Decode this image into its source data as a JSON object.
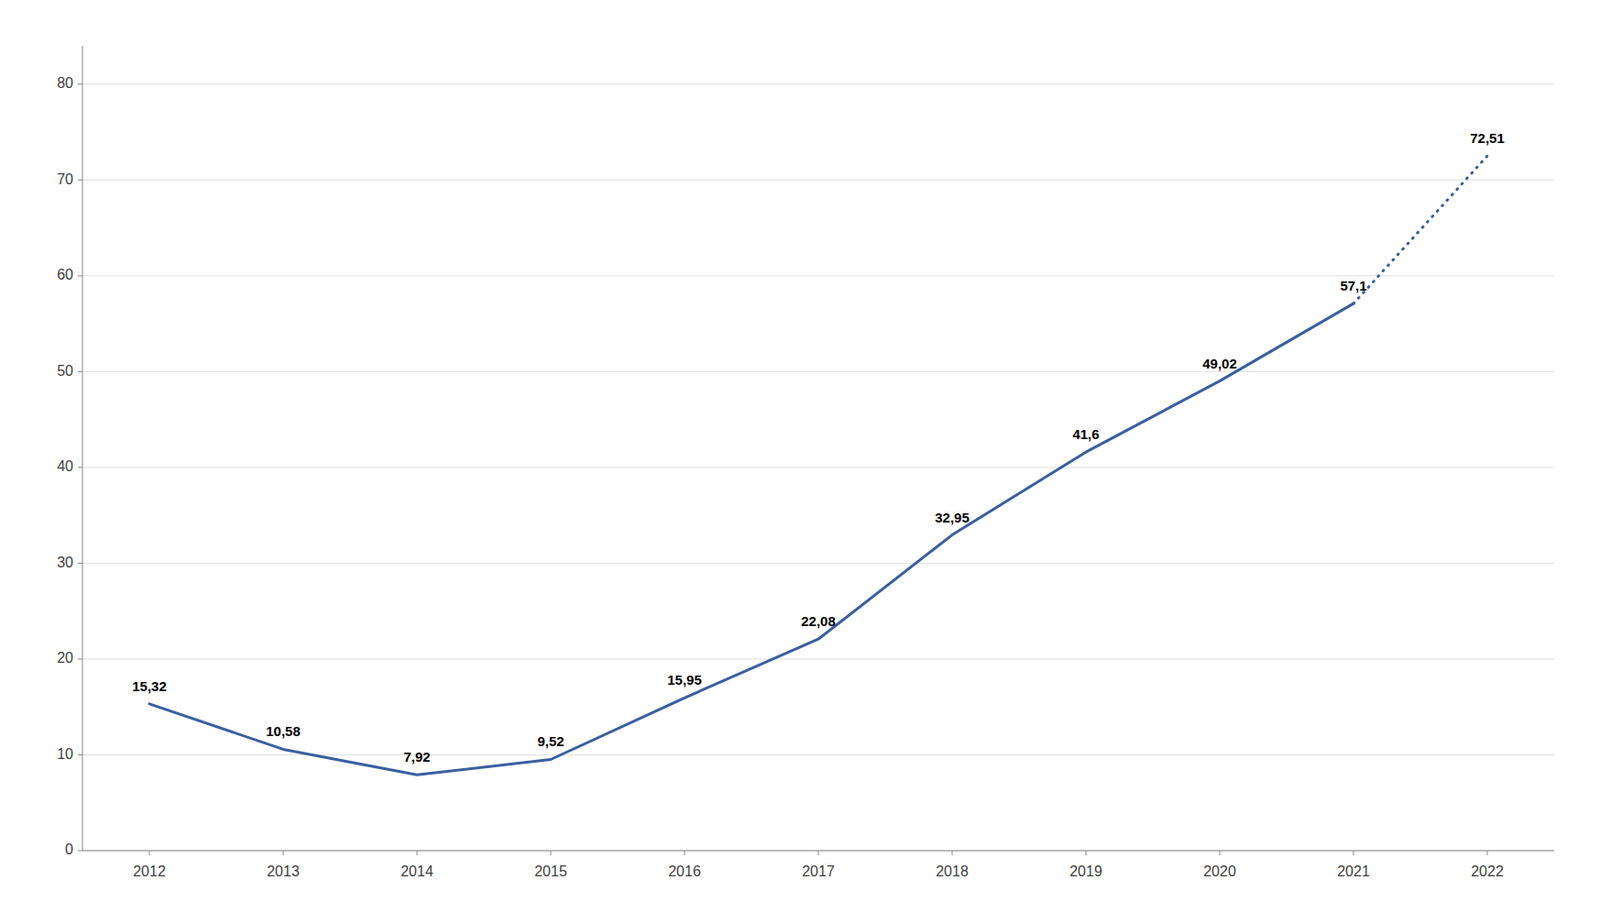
{
  "chart_data": {
    "type": "line",
    "x": [
      2012,
      2013,
      2014,
      2015,
      2016,
      2017,
      2018,
      2019,
      2020,
      2021,
      2022
    ],
    "series": [
      {
        "color": "#3A5FA0",
        "line_style": "solid",
        "values": [
          15.32,
          10.58,
          7.92,
          9.52,
          15.95,
          22.08,
          32.95,
          41.6,
          49.02,
          57.1,
          null
        ],
        "value_labels": [
          "15,32",
          "10,58",
          "7,92",
          "9,52",
          "15,95",
          "22,08",
          "32,95",
          "41,6",
          "49,02",
          "57,1",
          null
        ]
      },
      {
        "color": "#3A5FA0",
        "line_style": "dotted",
        "values": [
          null,
          null,
          null,
          null,
          null,
          null,
          null,
          null,
          null,
          57.1,
          72.51
        ],
        "value_labels": [
          null,
          null,
          null,
          null,
          null,
          null,
          null,
          null,
          null,
          null,
          "72,51"
        ]
      }
    ],
    "xlim": [
      2011.5,
      2022.5
    ],
    "xticks": [
      2012,
      2013,
      2014,
      2015,
      2016,
      2017,
      2018,
      2019,
      2020,
      2021,
      2022
    ],
    "ylim": [
      0,
      84
    ],
    "yticks": [
      0,
      10,
      20,
      30,
      40,
      50,
      60,
      70,
      80
    ],
    "grid": true,
    "data_labels": true
  }
}
